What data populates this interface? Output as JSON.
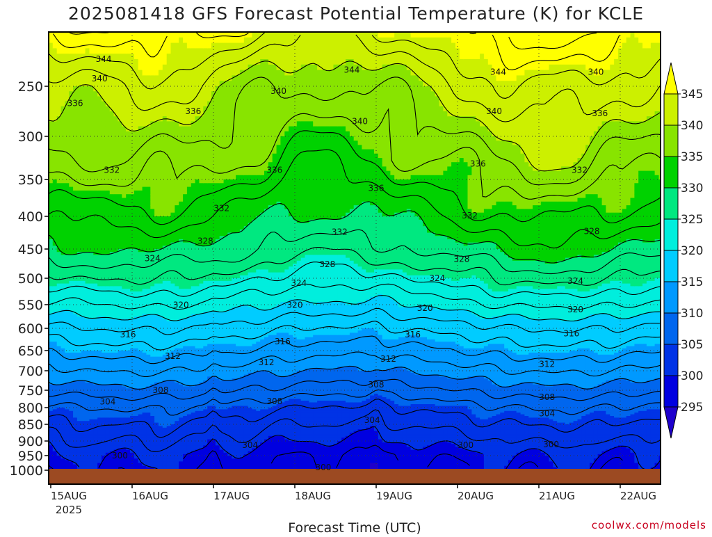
{
  "chart_data": {
    "type": "heatmap",
    "title": "2025081418 GFS Forecast Potential Temperature (K) for KCLE",
    "xlabel": "Forecast Time (UTC)",
    "ylabel": "",
    "x_tick_labels": [
      "15AUG",
      "16AUG",
      "17AUG",
      "18AUG",
      "19AUG",
      "20AUG",
      "21AUG",
      "22AUG"
    ],
    "x_tick_sublabel": "2025",
    "x_range_days": [
      0,
      7.5
    ],
    "y_axis": "pressure (hPa), inverted, log-like",
    "y_ticks": [
      250,
      300,
      350,
      400,
      450,
      500,
      550,
      600,
      650,
      700,
      750,
      800,
      850,
      900,
      950,
      1000
    ],
    "y_tick_labels": [
      "250",
      "300",
      "350",
      "400",
      "450",
      "500",
      "550",
      "600",
      "650",
      "700",
      "750",
      "800",
      "850",
      "900",
      "950",
      "1000"
    ],
    "y_range": [
      200,
      1000
    ],
    "grid": "dotted",
    "colorbar": {
      "levels": [
        295,
        300,
        305,
        310,
        315,
        320,
        325,
        330,
        335,
        340,
        345
      ],
      "labels": [
        "295",
        "300",
        "305",
        "310",
        "315",
        "320",
        "325",
        "330",
        "335",
        "340",
        "345"
      ],
      "colors": [
        "#1e00cc",
        "#0000e0",
        "#0033e6",
        "#0066ee",
        "#0099ff",
        "#00ccff",
        "#00eedd",
        "#00e880",
        "#00d200",
        "#88e400",
        "#ccf000",
        "#ffff00"
      ],
      "extend": "both"
    },
    "ground_color": "#9c4a22",
    "contour_interval": 2,
    "profile": {
      "p": [
        200,
        250,
        300,
        350,
        400,
        450,
        500,
        550,
        600,
        650,
        700,
        750,
        800,
        850,
        900,
        950,
        1000
      ],
      "theta": [
        346,
        341,
        338,
        335,
        332,
        329,
        325,
        321,
        317,
        314,
        311,
        308,
        305,
        303,
        301,
        299,
        298
      ]
    },
    "contour_labels": [
      {
        "text": "344",
        "day": 0.65,
        "p": 225
      },
      {
        "text": "344",
        "day": 3.7,
        "p": 235
      },
      {
        "text": "344",
        "day": 5.5,
        "p": 237
      },
      {
        "text": "340",
        "day": 0.6,
        "p": 243
      },
      {
        "text": "340",
        "day": 2.8,
        "p": 255
      },
      {
        "text": "340",
        "day": 6.7,
        "p": 237
      },
      {
        "text": "340",
        "day": 5.45,
        "p": 275
      },
      {
        "text": "340",
        "day": 3.8,
        "p": 285
      },
      {
        "text": "336",
        "day": 0.3,
        "p": 267
      },
      {
        "text": "336",
        "day": 1.75,
        "p": 275
      },
      {
        "text": "336",
        "day": 6.75,
        "p": 277
      },
      {
        "text": "336",
        "day": 2.75,
        "p": 339
      },
      {
        "text": "336",
        "day": 5.25,
        "p": 332
      },
      {
        "text": "336",
        "day": 4.0,
        "p": 362
      },
      {
        "text": "332",
        "day": 0.75,
        "p": 339
      },
      {
        "text": "332",
        "day": 2.1,
        "p": 389
      },
      {
        "text": "332",
        "day": 6.5,
        "p": 339
      },
      {
        "text": "332",
        "day": 3.55,
        "p": 424
      },
      {
        "text": "332",
        "day": 5.15,
        "p": 399
      },
      {
        "text": "328",
        "day": 1.9,
        "p": 438
      },
      {
        "text": "328",
        "day": 6.65,
        "p": 423
      },
      {
        "text": "328",
        "day": 3.4,
        "p": 476
      },
      {
        "text": "328",
        "day": 5.05,
        "p": 467
      },
      {
        "text": "324",
        "day": 1.25,
        "p": 466
      },
      {
        "text": "324",
        "day": 3.05,
        "p": 509
      },
      {
        "text": "324",
        "day": 4.75,
        "p": 500
      },
      {
        "text": "324",
        "day": 6.45,
        "p": 505
      },
      {
        "text": "320",
        "day": 1.6,
        "p": 551
      },
      {
        "text": "320",
        "day": 3.0,
        "p": 551
      },
      {
        "text": "320",
        "day": 4.6,
        "p": 557
      },
      {
        "text": "320",
        "day": 6.45,
        "p": 560
      },
      {
        "text": "316",
        "day": 0.95,
        "p": 614
      },
      {
        "text": "316",
        "day": 2.85,
        "p": 630
      },
      {
        "text": "316",
        "day": 4.45,
        "p": 614
      },
      {
        "text": "316",
        "day": 6.4,
        "p": 612
      },
      {
        "text": "312",
        "day": 1.5,
        "p": 664
      },
      {
        "text": "312",
        "day": 2.65,
        "p": 679
      },
      {
        "text": "312",
        "day": 4.15,
        "p": 671
      },
      {
        "text": "312",
        "day": 6.1,
        "p": 684
      },
      {
        "text": "308",
        "day": 1.35,
        "p": 750
      },
      {
        "text": "308",
        "day": 4.0,
        "p": 736
      },
      {
        "text": "308",
        "day": 2.75,
        "p": 782
      },
      {
        "text": "308",
        "day": 6.1,
        "p": 770
      },
      {
        "text": "304",
        "day": 0.7,
        "p": 783
      },
      {
        "text": "304",
        "day": 3.95,
        "p": 838
      },
      {
        "text": "304",
        "day": 6.1,
        "p": 818
      },
      {
        "text": "304",
        "day": 2.45,
        "p": 914
      },
      {
        "text": "300",
        "day": 0.85,
        "p": 950
      },
      {
        "text": "300",
        "day": 5.1,
        "p": 914
      },
      {
        "text": "300",
        "day": 6.15,
        "p": 912
      },
      {
        "text": "300",
        "day": 3.35,
        "p": 990
      }
    ]
  },
  "footer": {
    "credit": "coolwx.com/models"
  }
}
